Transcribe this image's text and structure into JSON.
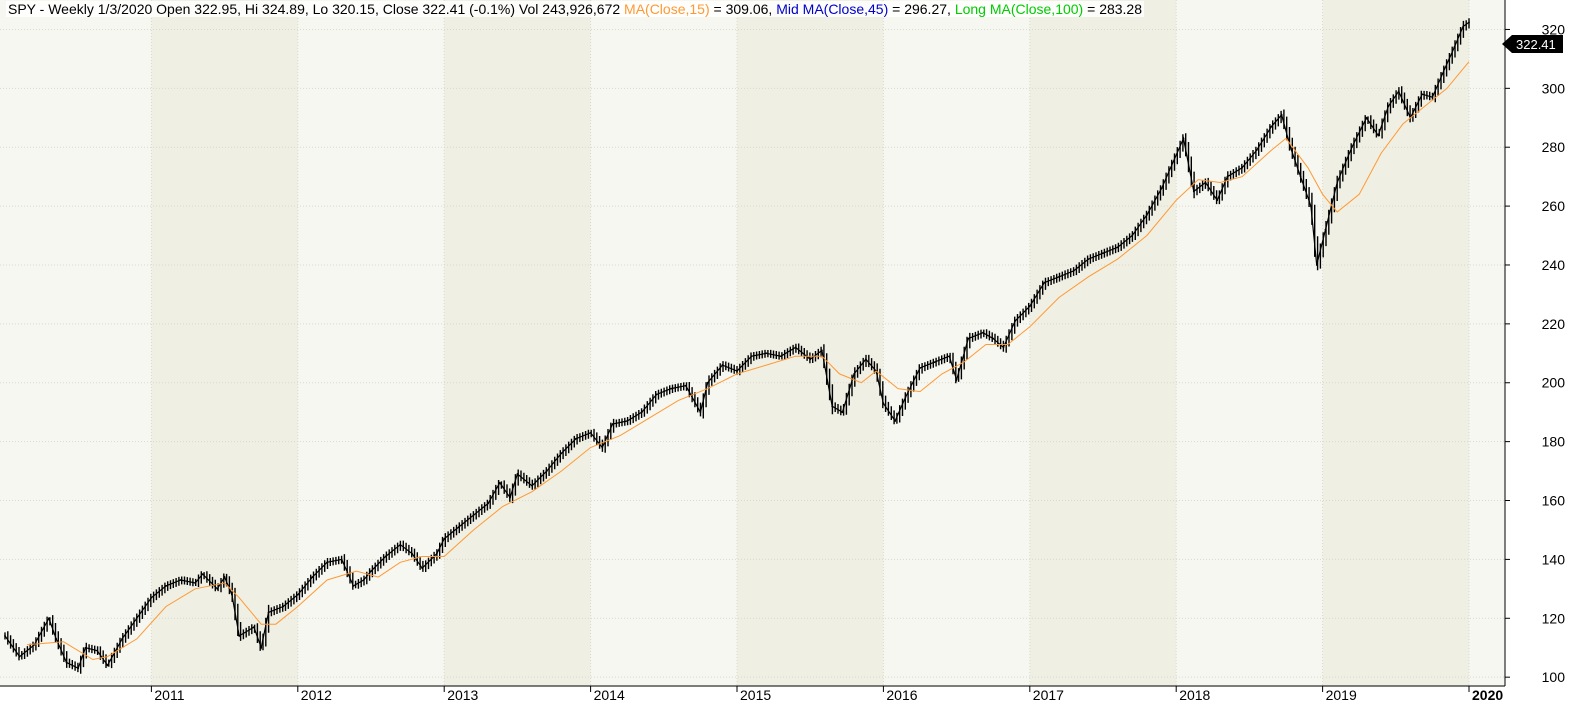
{
  "header": {
    "symbol": "SPY",
    "interval": "Weekly",
    "date": "1/3/2020",
    "open_label": "Open",
    "open": "322.95",
    "hi_label": "Hi",
    "hi": "324.89",
    "lo_label": "Lo",
    "lo": "320.15",
    "close_label": "Close",
    "close": "322.41",
    "change": "(-0.1%)",
    "vol_label": "Vol",
    "vol": "243,926,672",
    "ma_label": "MA(Close,15)",
    "ma_value": "309.06",
    "mid_ma_label": "Mid MA(Close,45)",
    "mid_ma_value": "296.27",
    "long_ma_label": "Long MA(Close,100)",
    "long_ma_value": "283.28"
  },
  "colors": {
    "background": "#f7f7f1",
    "year_band": "#efefe3",
    "gridline": "#d9d9cf",
    "price_bars": "#000000",
    "ma15": "#ff9933",
    "mid_ma45": "#0000cc",
    "long_ma100": "#00cc00",
    "price_tag_bg": "#000000",
    "price_tag_text": "#ffffff"
  },
  "price_tag": "322.41",
  "chart_data": {
    "type": "line",
    "title": "SPY - Weekly 1/3/2020",
    "ylim": [
      97,
      330
    ],
    "y_ticks": [
      100,
      120,
      140,
      160,
      180,
      200,
      220,
      240,
      260,
      280,
      300,
      320
    ],
    "x_range": [
      2010.0,
      2020.0
    ],
    "x_ticks": [
      {
        "label": "2011",
        "value": 2011
      },
      {
        "label": "2012",
        "value": 2012
      },
      {
        "label": "2013",
        "value": 2013
      },
      {
        "label": "2014",
        "value": 2014
      },
      {
        "label": "2015",
        "value": 2015
      },
      {
        "label": "2016",
        "value": 2016
      },
      {
        "label": "2017",
        "value": 2017
      },
      {
        "label": "2018",
        "value": 2018
      },
      {
        "label": "2019",
        "value": 2019
      },
      {
        "label": "2020",
        "value": 2020
      }
    ],
    "shaded_years": [
      2011,
      2013,
      2015,
      2017,
      2019
    ],
    "gridlines": true,
    "series": [
      {
        "name": "SPY",
        "style": "bars",
        "points": [
          [
            2010.0,
            114
          ],
          [
            2010.1,
            107
          ],
          [
            2010.2,
            111
          ],
          [
            2010.3,
            120
          ],
          [
            2010.35,
            113
          ],
          [
            2010.42,
            105
          ],
          [
            2010.5,
            103
          ],
          [
            2010.55,
            110
          ],
          [
            2010.63,
            109
          ],
          [
            2010.7,
            104
          ],
          [
            2010.8,
            113
          ],
          [
            2010.9,
            120
          ],
          [
            2011.0,
            127
          ],
          [
            2011.1,
            131
          ],
          [
            2011.2,
            133
          ],
          [
            2011.3,
            132
          ],
          [
            2011.35,
            135
          ],
          [
            2011.45,
            130
          ],
          [
            2011.5,
            134
          ],
          [
            2011.55,
            128
          ],
          [
            2011.6,
            114
          ],
          [
            2011.7,
            117
          ],
          [
            2011.75,
            110
          ],
          [
            2011.8,
            122
          ],
          [
            2011.9,
            124
          ],
          [
            2012.0,
            128
          ],
          [
            2012.1,
            134
          ],
          [
            2012.2,
            139
          ],
          [
            2012.3,
            140
          ],
          [
            2012.38,
            131
          ],
          [
            2012.45,
            133
          ],
          [
            2012.5,
            136
          ],
          [
            2012.6,
            141
          ],
          [
            2012.7,
            145
          ],
          [
            2012.78,
            142
          ],
          [
            2012.85,
            137
          ],
          [
            2012.95,
            142
          ],
          [
            2013.0,
            147
          ],
          [
            2013.1,
            151
          ],
          [
            2013.2,
            155
          ],
          [
            2013.3,
            159
          ],
          [
            2013.38,
            166
          ],
          [
            2013.45,
            161
          ],
          [
            2013.5,
            169
          ],
          [
            2013.6,
            165
          ],
          [
            2013.7,
            170
          ],
          [
            2013.8,
            176
          ],
          [
            2013.9,
            181
          ],
          [
            2014.0,
            183
          ],
          [
            2014.08,
            178
          ],
          [
            2014.15,
            186
          ],
          [
            2014.25,
            187
          ],
          [
            2014.35,
            190
          ],
          [
            2014.45,
            196
          ],
          [
            2014.55,
            198
          ],
          [
            2014.65,
            199
          ],
          [
            2014.75,
            190
          ],
          [
            2014.8,
            200
          ],
          [
            2014.9,
            206
          ],
          [
            2015.0,
            204
          ],
          [
            2015.1,
            209
          ],
          [
            2015.2,
            210
          ],
          [
            2015.3,
            209
          ],
          [
            2015.4,
            212
          ],
          [
            2015.5,
            208
          ],
          [
            2015.58,
            211
          ],
          [
            2015.65,
            192
          ],
          [
            2015.72,
            190
          ],
          [
            2015.8,
            203
          ],
          [
            2015.88,
            208
          ],
          [
            2015.95,
            204
          ],
          [
            2016.0,
            193
          ],
          [
            2016.08,
            187
          ],
          [
            2016.15,
            195
          ],
          [
            2016.25,
            205
          ],
          [
            2016.35,
            207
          ],
          [
            2016.45,
            209
          ],
          [
            2016.5,
            201
          ],
          [
            2016.58,
            215
          ],
          [
            2016.68,
            217
          ],
          [
            2016.75,
            215
          ],
          [
            2016.82,
            212
          ],
          [
            2016.9,
            221
          ],
          [
            2017.0,
            226
          ],
          [
            2017.1,
            234
          ],
          [
            2017.2,
            236
          ],
          [
            2017.3,
            238
          ],
          [
            2017.4,
            242
          ],
          [
            2017.5,
            244
          ],
          [
            2017.6,
            246
          ],
          [
            2017.7,
            250
          ],
          [
            2017.8,
            257
          ],
          [
            2017.9,
            266
          ],
          [
            2018.05,
            283
          ],
          [
            2018.12,
            265
          ],
          [
            2018.2,
            268
          ],
          [
            2018.28,
            262
          ],
          [
            2018.35,
            270
          ],
          [
            2018.45,
            273
          ],
          [
            2018.55,
            279
          ],
          [
            2018.65,
            287
          ],
          [
            2018.72,
            291
          ],
          [
            2018.78,
            280
          ],
          [
            2018.85,
            270
          ],
          [
            2018.92,
            260
          ],
          [
            2018.96,
            240
          ],
          [
            2019.02,
            252
          ],
          [
            2019.1,
            268
          ],
          [
            2019.2,
            280
          ],
          [
            2019.3,
            290
          ],
          [
            2019.38,
            284
          ],
          [
            2019.45,
            294
          ],
          [
            2019.52,
            299
          ],
          [
            2019.6,
            290
          ],
          [
            2019.68,
            298
          ],
          [
            2019.75,
            297
          ],
          [
            2019.82,
            305
          ],
          [
            2019.9,
            314
          ],
          [
            2019.96,
            321
          ],
          [
            2020.0,
            322.41
          ]
        ]
      },
      {
        "name": "MA(Close,15)",
        "style": "line",
        "points": [
          [
            2010.15,
            111
          ],
          [
            2010.4,
            112
          ],
          [
            2010.6,
            106
          ],
          [
            2010.7,
            107
          ],
          [
            2010.9,
            113
          ],
          [
            2011.1,
            124
          ],
          [
            2011.3,
            130
          ],
          [
            2011.5,
            132
          ],
          [
            2011.6,
            127
          ],
          [
            2011.75,
            118
          ],
          [
            2011.85,
            118
          ],
          [
            2012.0,
            124
          ],
          [
            2012.2,
            133
          ],
          [
            2012.4,
            136
          ],
          [
            2012.55,
            134
          ],
          [
            2012.7,
            139
          ],
          [
            2012.85,
            141
          ],
          [
            2013.0,
            141
          ],
          [
            2013.2,
            150
          ],
          [
            2013.4,
            158
          ],
          [
            2013.6,
            163
          ],
          [
            2013.8,
            170
          ],
          [
            2014.0,
            178
          ],
          [
            2014.2,
            182
          ],
          [
            2014.4,
            188
          ],
          [
            2014.6,
            194
          ],
          [
            2014.8,
            198
          ],
          [
            2015.0,
            203
          ],
          [
            2015.2,
            206
          ],
          [
            2015.4,
            209
          ],
          [
            2015.58,
            209
          ],
          [
            2015.7,
            203
          ],
          [
            2015.85,
            200
          ],
          [
            2015.95,
            204
          ],
          [
            2016.1,
            198
          ],
          [
            2016.25,
            197
          ],
          [
            2016.4,
            203
          ],
          [
            2016.55,
            207
          ],
          [
            2016.7,
            213
          ],
          [
            2016.85,
            213
          ],
          [
            2017.0,
            219
          ],
          [
            2017.2,
            229
          ],
          [
            2017.4,
            236
          ],
          [
            2017.6,
            242
          ],
          [
            2017.8,
            250
          ],
          [
            2018.0,
            262
          ],
          [
            2018.15,
            269
          ],
          [
            2018.3,
            268
          ],
          [
            2018.45,
            270
          ],
          [
            2018.65,
            279
          ],
          [
            2018.75,
            283
          ],
          [
            2018.9,
            273
          ],
          [
            2019.0,
            264
          ],
          [
            2019.1,
            258
          ],
          [
            2019.25,
            264
          ],
          [
            2019.4,
            278
          ],
          [
            2019.55,
            288
          ],
          [
            2019.7,
            294
          ],
          [
            2019.85,
            300
          ],
          [
            2020.0,
            309.06
          ]
        ]
      }
    ]
  }
}
